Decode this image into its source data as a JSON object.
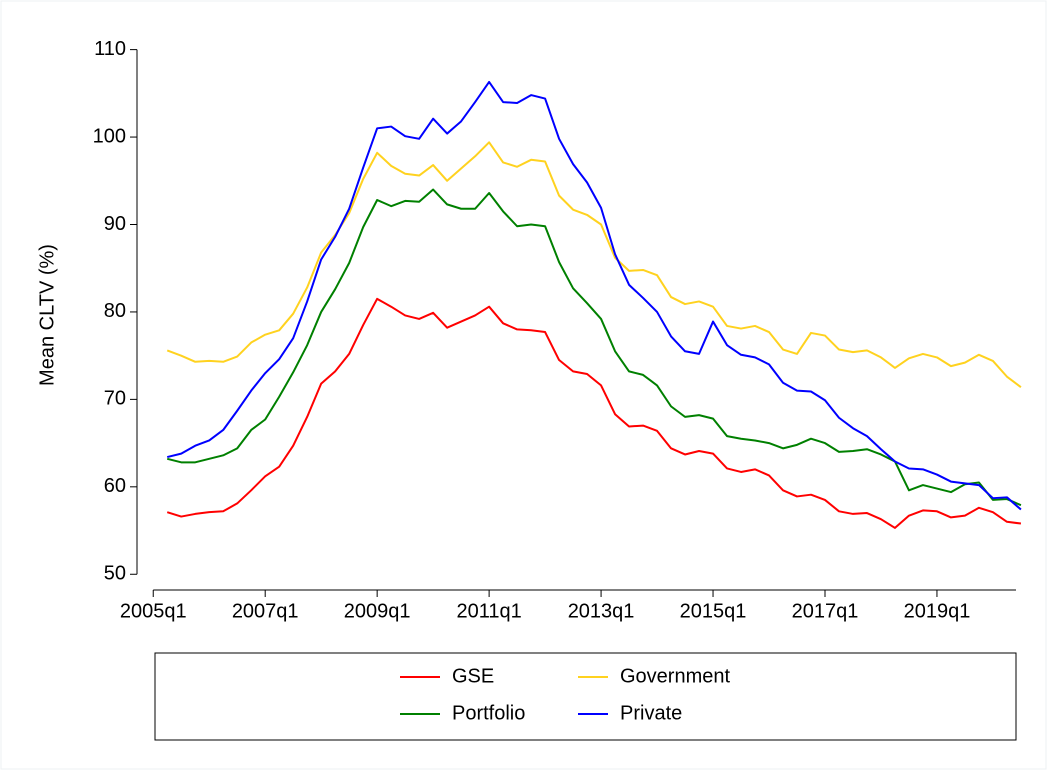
{
  "chart_data": {
    "type": "line",
    "y_label": "Mean CLTV (%)",
    "x": [
      2005.25,
      2005.5,
      2005.75,
      2006,
      2006.25,
      2006.5,
      2006.75,
      2007,
      2007.25,
      2007.5,
      2007.75,
      2008,
      2008.25,
      2008.5,
      2008.75,
      2009,
      2009.25,
      2009.5,
      2009.75,
      2010,
      2010.25,
      2010.5,
      2010.75,
      2011,
      2011.25,
      2011.5,
      2011.75,
      2012,
      2012.25,
      2012.5,
      2012.75,
      2013,
      2013.25,
      2013.5,
      2013.75,
      2014,
      2014.25,
      2014.5,
      2014.75,
      2015,
      2015.25,
      2015.5,
      2015.75,
      2016,
      2016.25,
      2016.5,
      2016.75,
      2017,
      2017.25,
      2017.5,
      2017.75,
      2018,
      2018.25,
      2018.5,
      2018.75,
      2019,
      2019.25,
      2019.5,
      2019.75,
      2020,
      2020.25,
      2020.5
    ],
    "series": [
      {
        "name": "GSE",
        "color": "#ff0000",
        "values": [
          57.1,
          56.6,
          56.9,
          57.1,
          57.2,
          58.1,
          59.6,
          61.2,
          62.3,
          64.7,
          68.0,
          71.8,
          73.2,
          75.2,
          78.5,
          81.5,
          80.6,
          79.6,
          79.2,
          79.9,
          78.2,
          78.9,
          79.6,
          80.6,
          78.7,
          78.0,
          77.9,
          77.7,
          74.5,
          73.2,
          72.9,
          71.6,
          68.3,
          66.9,
          67.0,
          66.4,
          64.4,
          63.7,
          64.1,
          63.8,
          62.1,
          61.7,
          62.0,
          61.3,
          59.6,
          58.9,
          59.1,
          58.5,
          57.2,
          56.9,
          57.0,
          56.3,
          55.3,
          56.7,
          57.3,
          57.2,
          56.5,
          56.7,
          57.6,
          57.1,
          56.0,
          55.8
        ]
      },
      {
        "name": "Government",
        "color": "#ffd21f",
        "values": [
          75.6,
          75.0,
          74.3,
          74.4,
          74.3,
          74.9,
          76.5,
          77.4,
          77.9,
          79.8,
          82.8,
          86.8,
          88.8,
          91.3,
          95.2,
          98.2,
          96.7,
          95.8,
          95.6,
          96.8,
          95.0,
          96.4,
          97.8,
          99.4,
          97.1,
          96.6,
          97.4,
          97.2,
          93.3,
          91.7,
          91.1,
          90.0,
          86.2,
          84.7,
          84.8,
          84.2,
          81.7,
          80.9,
          81.2,
          80.6,
          78.4,
          78.1,
          78.4,
          77.7,
          75.7,
          75.2,
          77.6,
          77.3,
          75.7,
          75.4,
          75.6,
          74.8,
          73.6,
          74.7,
          75.2,
          74.8,
          73.8,
          74.2,
          75.1,
          74.4,
          72.6,
          71.4
        ]
      },
      {
        "name": "Portfolio",
        "color": "#008000",
        "values": [
          63.2,
          62.8,
          62.8,
          63.2,
          63.6,
          64.4,
          66.5,
          67.7,
          70.3,
          73.1,
          76.2,
          80.0,
          82.6,
          85.6,
          89.7,
          92.8,
          92.1,
          92.7,
          92.6,
          94.0,
          92.3,
          91.8,
          91.8,
          93.6,
          91.5,
          89.8,
          90.0,
          89.8,
          85.7,
          82.7,
          81.0,
          79.2,
          75.5,
          73.2,
          72.8,
          71.6,
          69.2,
          68.0,
          68.2,
          67.8,
          65.8,
          65.5,
          65.3,
          65.0,
          64.4,
          64.8,
          65.5,
          65.0,
          64.0,
          64.1,
          64.3,
          63.7,
          62.9,
          59.6,
          60.2,
          59.8,
          59.4,
          60.3,
          60.5,
          58.5,
          58.6,
          57.9
        ]
      },
      {
        "name": "Private",
        "color": "#0000ff",
        "values": [
          63.4,
          63.8,
          64.7,
          65.3,
          66.5,
          68.7,
          71.0,
          73.0,
          74.6,
          77.0,
          81.2,
          86.0,
          88.6,
          91.8,
          96.5,
          101.0,
          101.2,
          100.1,
          99.8,
          102.1,
          100.4,
          101.8,
          104.0,
          106.3,
          104.0,
          103.9,
          104.8,
          104.4,
          99.8,
          96.9,
          94.8,
          91.9,
          86.6,
          83.1,
          81.6,
          80.0,
          77.2,
          75.5,
          75.2,
          78.9,
          76.2,
          75.1,
          74.8,
          74.0,
          71.9,
          71.0,
          70.9,
          69.9,
          67.9,
          66.7,
          65.8,
          64.3,
          62.9,
          62.1,
          62.0,
          61.4,
          60.6,
          60.4,
          60.2,
          58.7,
          58.8,
          57.4
        ]
      }
    ],
    "xlim": [
      2004.71,
      2020.68
    ],
    "xticks": [
      {
        "value": 2005,
        "label": "2005q1"
      },
      {
        "value": 2007,
        "label": "2007q1"
      },
      {
        "value": 2009,
        "label": "2009q1"
      },
      {
        "value": 2011,
        "label": "2011q1"
      },
      {
        "value": 2013,
        "label": "2013q1"
      },
      {
        "value": 2015,
        "label": "2015q1"
      },
      {
        "value": 2017,
        "label": "2017q1"
      },
      {
        "value": 2019,
        "label": "2019q1"
      }
    ],
    "ylim": [
      48.2,
      111.1
    ],
    "yticks": [
      50,
      60,
      70,
      80,
      90,
      100,
      110
    ],
    "grid": false
  }
}
